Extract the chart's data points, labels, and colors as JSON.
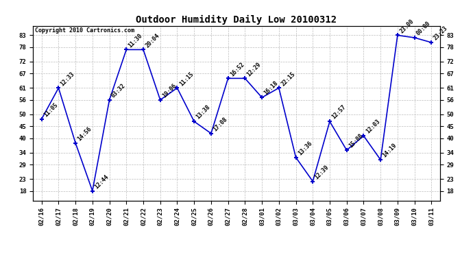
{
  "title": "Outdoor Humidity Daily Low 20100312",
  "copyright": "Copyright 2010 Cartronics.com",
  "x_labels": [
    "02/16",
    "02/17",
    "02/18",
    "02/19",
    "02/20",
    "02/21",
    "02/22",
    "02/23",
    "02/24",
    "02/25",
    "02/26",
    "02/27",
    "02/28",
    "03/01",
    "03/02",
    "03/03",
    "03/04",
    "03/05",
    "03/06",
    "03/07",
    "03/08",
    "03/09",
    "03/10",
    "03/11"
  ],
  "y_values": [
    48,
    61,
    38,
    18,
    56,
    77,
    77,
    56,
    61,
    47,
    42,
    65,
    65,
    57,
    61,
    32,
    22,
    47,
    35,
    41,
    31,
    83,
    82,
    80
  ],
  "point_labels": [
    "11:05",
    "12:33",
    "14:56",
    "12:44",
    "03:32",
    "11:30",
    "20:04",
    "19:06",
    "11:15",
    "13:38",
    "17:08",
    "16:52",
    "12:29",
    "16:18",
    "22:15",
    "13:36",
    "12:39",
    "12:57",
    "15:08",
    "12:03",
    "14:19",
    "23:00",
    "00:00",
    "23:23"
  ],
  "y_ticks": [
    18,
    23,
    29,
    34,
    40,
    45,
    50,
    56,
    61,
    67,
    72,
    78,
    83
  ],
  "line_color": "#0000cc",
  "marker_color": "#0000cc",
  "bg_color": "#ffffff",
  "grid_color": "#bbbbbb",
  "title_fontsize": 10,
  "label_fontsize": 6.5,
  "point_label_fontsize": 6,
  "copyright_fontsize": 6
}
